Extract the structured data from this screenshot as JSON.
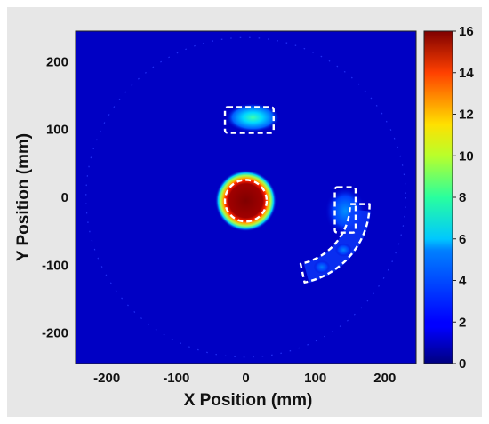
{
  "chart_data": {
    "type": "heatmap",
    "title": "",
    "xlabel": "X Position (mm)",
    "ylabel": "Y Position (mm)",
    "xlim": [
      -245,
      245
    ],
    "ylim": [
      -245,
      245
    ],
    "xticks": [
      -200,
      -100,
      0,
      100,
      200
    ],
    "yticks": [
      200,
      100,
      0,
      -100,
      -200
    ],
    "colorbar": {
      "range": [
        0,
        16
      ],
      "ticks": [
        0,
        2,
        4,
        6,
        8,
        10,
        12,
        14,
        16
      ],
      "colormap": "jet"
    },
    "field_of_view": {
      "shape": "circle",
      "center": [
        0,
        0
      ],
      "radius": 230
    },
    "hotspots": [
      {
        "label": "central disk",
        "shape": "disk",
        "cx": 0,
        "cy": -5,
        "r": 42,
        "peak": 16
      },
      {
        "label": "upper rectangle",
        "shape": "rect",
        "x": [
          -15,
          35
        ],
        "y": [
          102,
          133
        ],
        "peak": 6
      },
      {
        "label": "right rectangle",
        "shape": "rect",
        "x": [
          128,
          158
        ],
        "y": [
          -50,
          10
        ],
        "peak": 3
      },
      {
        "label": "curved arc",
        "shape": "arc",
        "center": [
          60,
          -10
        ],
        "r_inner": 90,
        "r_outer": 120,
        "start_deg": -5,
        "end_deg": -75,
        "peak": 3
      }
    ],
    "roi_outlines": [
      {
        "shape": "circle",
        "cx": 0,
        "cy": -5,
        "r": 30
      },
      {
        "shape": "rect",
        "x": [
          -30,
          40
        ],
        "y": [
          95,
          133
        ]
      },
      {
        "shape": "rect",
        "x": [
          128,
          158
        ],
        "y": [
          -52,
          15
        ]
      },
      {
        "shape": "arc",
        "center": [
          60,
          -10
        ],
        "r_inner": 90,
        "r_outer": 118,
        "start_deg": 0,
        "end_deg": -78
      }
    ]
  }
}
